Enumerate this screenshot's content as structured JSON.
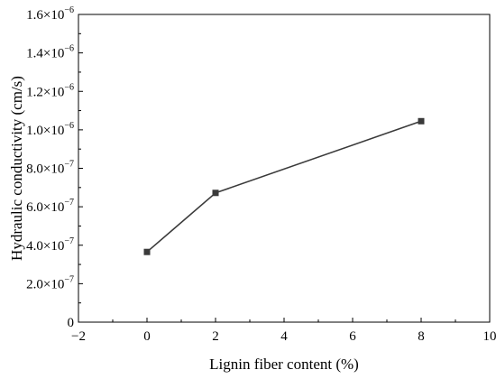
{
  "chart_data": {
    "type": "line",
    "title": "",
    "xlabel": "Lignin fiber content (%)",
    "ylabel": "Hydraulic conductivity (cm/s)",
    "xlim": [
      -2,
      10
    ],
    "ylim": [
      0,
      1.6e-06
    ],
    "x_ticks": [
      -2,
      0,
      2,
      4,
      6,
      8,
      10
    ],
    "x_tick_labels": [
      "−2",
      "0",
      "2",
      "4",
      "6",
      "8",
      "10"
    ],
    "y_ticks": [
      0,
      2e-07,
      4e-07,
      6e-07,
      8e-07,
      1e-06,
      1.2e-06,
      1.4e-06,
      1.6e-06
    ],
    "y_tick_labels": [
      {
        "mantissa": "0",
        "exponent": ""
      },
      {
        "mantissa": "2.0×10",
        "exponent": "−7"
      },
      {
        "mantissa": "4.0×10",
        "exponent": "−7"
      },
      {
        "mantissa": "6.0×10",
        "exponent": "−7"
      },
      {
        "mantissa": "8.0×10",
        "exponent": "−7"
      },
      {
        "mantissa": "1.0×10",
        "exponent": "−6"
      },
      {
        "mantissa": "1.2×10",
        "exponent": "−6"
      },
      {
        "mantissa": "1.4×10",
        "exponent": "−6"
      },
      {
        "mantissa": "1.6×10",
        "exponent": "−6"
      }
    ],
    "grid": false,
    "legend": "none",
    "series": [
      {
        "x": [
          0,
          2,
          8
        ],
        "values": [
          3.65e-07,
          6.72e-07,
          1.045e-06
        ],
        "marker": "square",
        "color": "#3a3a3a",
        "marker_color": "#3a3a3a"
      }
    ]
  }
}
